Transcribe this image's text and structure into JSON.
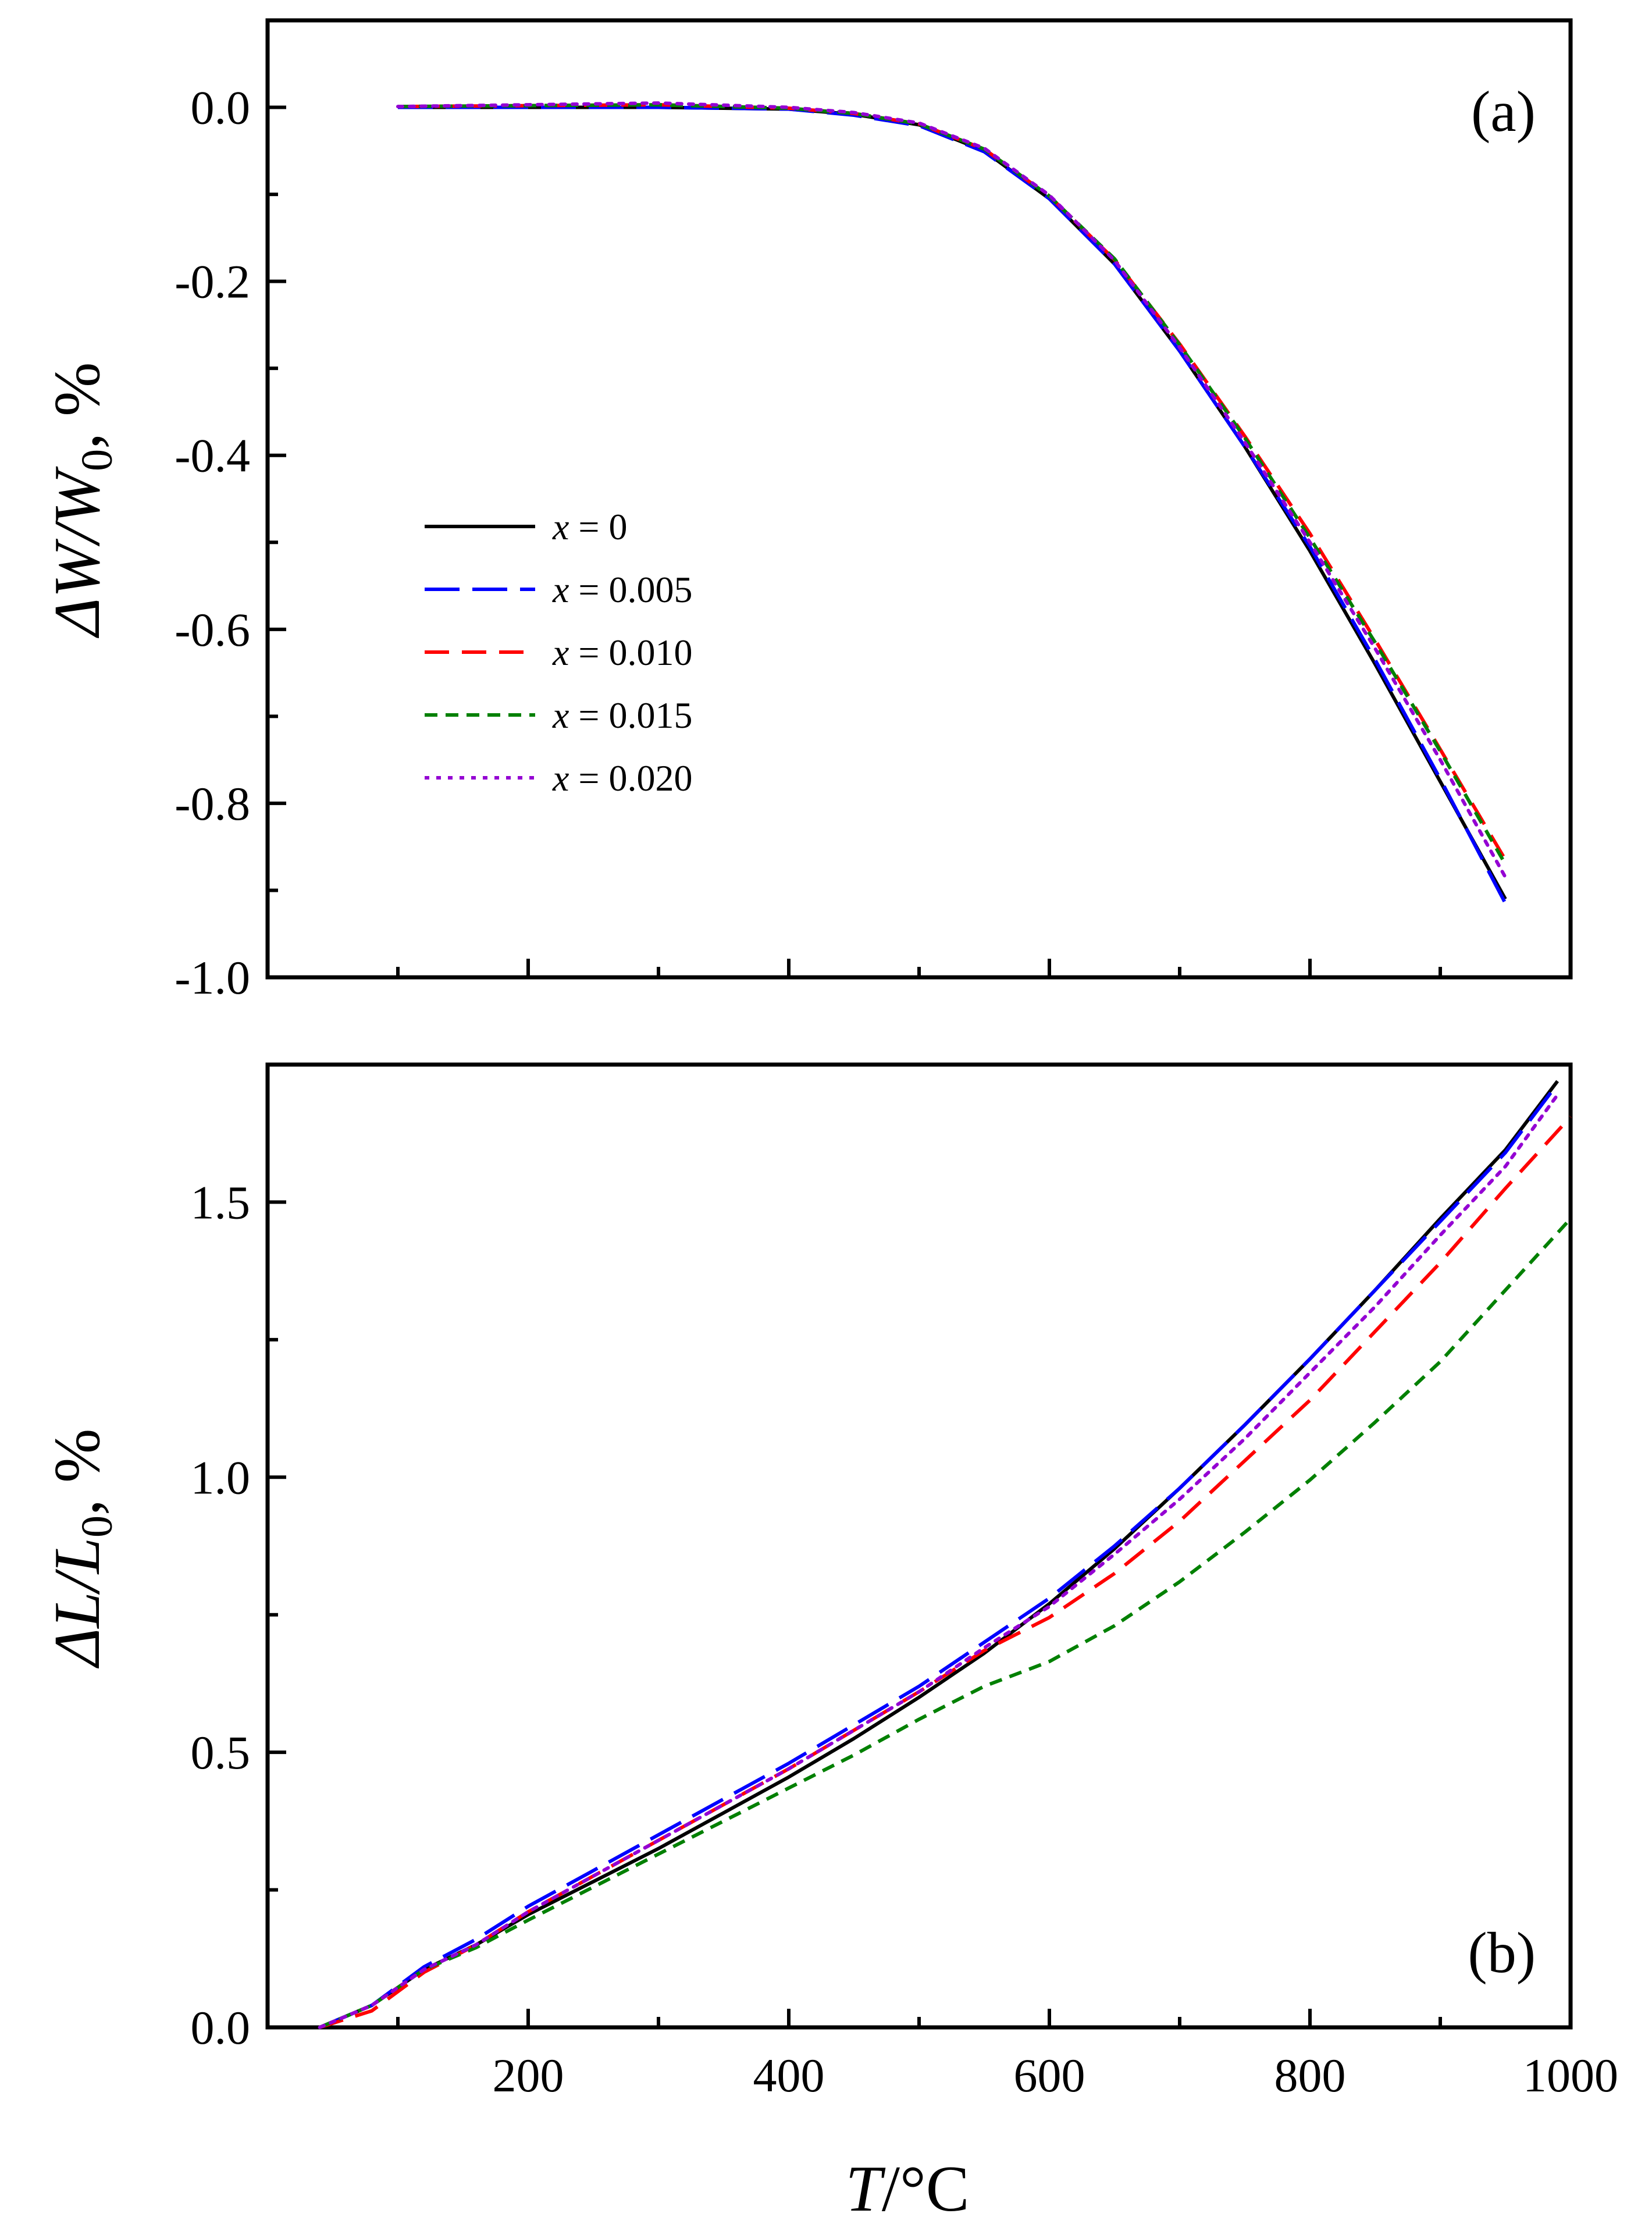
{
  "figure": {
    "xlabel_var": "T",
    "xlabel_unit": "/°C"
  },
  "legend": {
    "var": "x",
    "entries": [
      {
        "label": "= 0",
        "color": "#000000",
        "dash": "solid"
      },
      {
        "label": "= 0.005",
        "color": "#0000ff",
        "dash": "long-dash"
      },
      {
        "label": "= 0.010",
        "color": "#ff0000",
        "dash": "dash"
      },
      {
        "label": "= 0.015",
        "color": "#008000",
        "dash": "short-dash"
      },
      {
        "label": "= 0.020",
        "color": "#9400d3",
        "dash": "dot"
      }
    ]
  },
  "chart_data": [
    {
      "type": "line",
      "panel_label": "(a)",
      "title": "",
      "ylabel_parts": [
        "ΔW/W",
        "0",
        ", %"
      ],
      "xlim": [
        0,
        1000
      ],
      "ylim": [
        -1.0,
        0.1
      ],
      "x_ticks": [
        200,
        400,
        600,
        800,
        1000
      ],
      "x_tick_labels": [
        "",
        "",
        "",
        "",
        ""
      ],
      "y_ticks": [
        0.0,
        -0.2,
        -0.4,
        -0.6,
        -0.8,
        -1.0
      ],
      "y_tick_labels": [
        "0.0",
        "-0.2",
        "-0.4",
        "-0.6",
        "-0.8",
        "-1.0"
      ],
      "series": [
        {
          "name": "x = 0",
          "x": [
            100,
            200,
            300,
            400,
            450,
            500,
            550,
            600,
            650,
            700,
            750,
            800,
            850,
            900,
            950
          ],
          "y": [
            0.0,
            0.0,
            0.0,
            -0.002,
            -0.008,
            -0.02,
            -0.05,
            -0.105,
            -0.18,
            -0.28,
            -0.39,
            -0.51,
            -0.64,
            -0.775,
            -0.91
          ]
        },
        {
          "name": "x = 0.005",
          "x": [
            100,
            200,
            300,
            400,
            450,
            500,
            550,
            600,
            650,
            700,
            750,
            800,
            850,
            900,
            950
          ],
          "y": [
            0.0,
            0.0,
            0.0,
            -0.002,
            -0.009,
            -0.021,
            -0.051,
            -0.105,
            -0.18,
            -0.28,
            -0.39,
            -0.505,
            -0.635,
            -0.772,
            -0.915
          ]
        },
        {
          "name": "x = 0.010",
          "x": [
            100,
            200,
            300,
            400,
            450,
            500,
            550,
            600,
            650,
            700,
            750,
            800,
            850,
            900,
            950
          ],
          "y": [
            0.001,
            0.002,
            0.003,
            -0.001,
            -0.007,
            -0.019,
            -0.048,
            -0.102,
            -0.175,
            -0.272,
            -0.378,
            -0.49,
            -0.612,
            -0.738,
            -0.865
          ]
        },
        {
          "name": "x = 0.015",
          "x": [
            100,
            200,
            300,
            400,
            450,
            500,
            550,
            600,
            650,
            700,
            750,
            800,
            850,
            900,
            950
          ],
          "y": [
            0.001,
            0.002,
            0.003,
            -0.001,
            -0.007,
            -0.019,
            -0.048,
            -0.102,
            -0.174,
            -0.273,
            -0.38,
            -0.495,
            -0.615,
            -0.74,
            -0.87
          ]
        },
        {
          "name": "x = 0.020",
          "x": [
            100,
            200,
            300,
            400,
            450,
            500,
            550,
            600,
            650,
            700,
            750,
            800,
            850,
            900,
            950
          ],
          "y": [
            0.001,
            0.003,
            0.005,
            0.0,
            -0.006,
            -0.018,
            -0.047,
            -0.101,
            -0.176,
            -0.276,
            -0.385,
            -0.5,
            -0.622,
            -0.75,
            -0.885
          ]
        }
      ]
    },
    {
      "type": "line",
      "panel_label": "(b)",
      "title": "",
      "ylabel_parts": [
        "ΔL/L",
        "0",
        ", %"
      ],
      "xlim": [
        0,
        1000
      ],
      "ylim": [
        0.0,
        1.75
      ],
      "x_ticks": [
        200,
        400,
        600,
        800,
        1000
      ],
      "x_tick_labels": [
        "200",
        "400",
        "600",
        "800",
        "1000"
      ],
      "y_ticks": [
        0.0,
        0.5,
        1.0,
        1.5
      ],
      "y_tick_labels": [
        "0.0",
        "0.5",
        "1.0",
        "1.5"
      ],
      "series": [
        {
          "name": "x = 0",
          "x": [
            40,
            80,
            120,
            160,
            200,
            250,
            300,
            350,
            400,
            450,
            500,
            550,
            600,
            650,
            700,
            750,
            800,
            850,
            900,
            950,
            990
          ],
          "y": [
            0.0,
            0.04,
            0.105,
            0.15,
            0.205,
            0.265,
            0.325,
            0.39,
            0.455,
            0.525,
            0.6,
            0.68,
            0.77,
            0.87,
            0.98,
            1.095,
            1.215,
            1.34,
            1.47,
            1.595,
            1.72
          ]
        },
        {
          "name": "x = 0.005",
          "x": [
            40,
            80,
            120,
            160,
            200,
            250,
            300,
            350,
            400,
            450,
            500,
            550,
            600,
            650,
            700,
            750,
            800,
            850,
            900,
            950,
            990
          ],
          "y": [
            0.0,
            0.04,
            0.11,
            0.16,
            0.22,
            0.285,
            0.35,
            0.415,
            0.48,
            0.55,
            0.62,
            0.7,
            0.78,
            0.875,
            0.98,
            1.095,
            1.215,
            1.34,
            1.465,
            1.59,
            1.715
          ]
        },
        {
          "name": "x = 0.010",
          "x": [
            40,
            80,
            120,
            160,
            200,
            250,
            300,
            350,
            400,
            450,
            500,
            550,
            600,
            650,
            700,
            750,
            800,
            850,
            900,
            950,
            1000
          ],
          "y": [
            0.0,
            0.03,
            0.1,
            0.15,
            0.21,
            0.275,
            0.34,
            0.405,
            0.47,
            0.54,
            0.61,
            0.685,
            0.745,
            0.825,
            0.92,
            1.03,
            1.14,
            1.265,
            1.39,
            1.525,
            1.655
          ]
        },
        {
          "name": "x = 0.015",
          "x": [
            40,
            80,
            120,
            160,
            200,
            250,
            300,
            350,
            400,
            450,
            500,
            550,
            600,
            650,
            700,
            750,
            800,
            850,
            900,
            950,
            1000
          ],
          "y": [
            0.0,
            0.04,
            0.105,
            0.145,
            0.195,
            0.255,
            0.315,
            0.375,
            0.435,
            0.495,
            0.56,
            0.62,
            0.665,
            0.73,
            0.81,
            0.9,
            0.995,
            1.1,
            1.21,
            1.34,
            1.47
          ]
        },
        {
          "name": "x = 0.020",
          "x": [
            40,
            80,
            120,
            160,
            200,
            250,
            300,
            350,
            400,
            450,
            500,
            550,
            600,
            650,
            700,
            750,
            800,
            850,
            900,
            950,
            990
          ],
          "y": [
            0.0,
            0.04,
            0.105,
            0.15,
            0.21,
            0.275,
            0.34,
            0.405,
            0.47,
            0.54,
            0.61,
            0.69,
            0.765,
            0.86,
            0.96,
            1.07,
            1.19,
            1.31,
            1.44,
            1.565,
            1.695
          ]
        }
      ]
    }
  ]
}
